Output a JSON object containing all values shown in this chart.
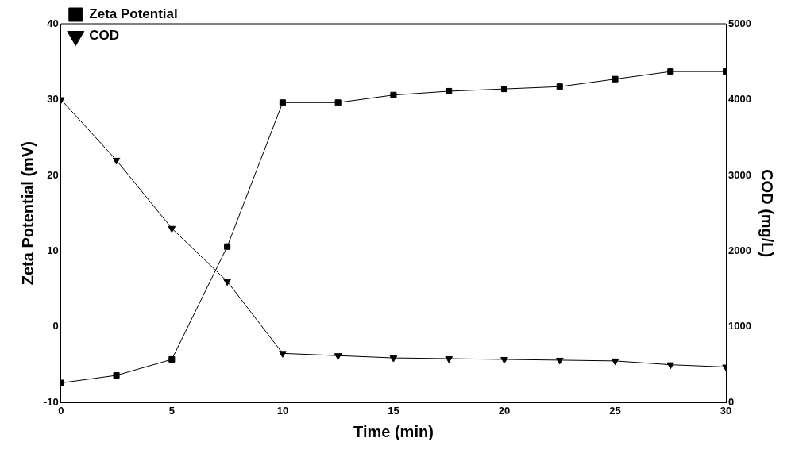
{
  "chart_data": {
    "type": "line",
    "xlabel": "Time (min)",
    "ylabel": "Zeta Potential (mV)",
    "y2label": "COD (mg/L)",
    "x": [
      0,
      2.5,
      5,
      7.5,
      10,
      12.5,
      15,
      17.5,
      20,
      22.5,
      25,
      27.5,
      30
    ],
    "series": [
      {
        "name": "Zeta Potential",
        "color": "#000000",
        "marker": "square",
        "values": [
          -7.4,
          -6.4,
          -4.3,
          10.6,
          29.6,
          29.6,
          30.6,
          31.1,
          31.4,
          31.7,
          32.7,
          33.7,
          33.7
        ]
      },
      {
        "name": "COD",
        "color": "#000000",
        "marker": "triangle",
        "axis": "y2",
        "values": [
          4000,
          3200,
          2300,
          1600,
          650,
          620,
          590,
          580,
          570,
          560,
          550,
          500,
          470
        ]
      }
    ],
    "xlim": [
      0,
      30
    ],
    "xticks": [
      0,
      5,
      10,
      15,
      20,
      25,
      30
    ],
    "ylim": [
      -10,
      40
    ],
    "yticks": [
      -10,
      0,
      10,
      20,
      30,
      40
    ],
    "y2lim": [
      0,
      5000
    ],
    "y2ticks": [
      0,
      1000,
      2000,
      3000,
      4000,
      5000
    ],
    "grid": false,
    "legend": "top left",
    "line_style": "solid"
  }
}
